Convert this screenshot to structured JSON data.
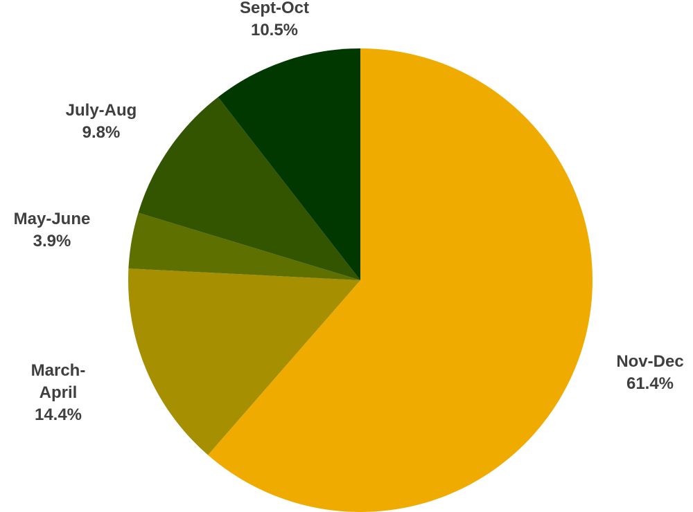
{
  "chart_data": {
    "type": "pie",
    "start_angle_deg": 0,
    "direction": "clockwise",
    "grid": false,
    "legend": "none",
    "slices": [
      {
        "category": "Nov-Dec",
        "value": 61.4,
        "label": "61.4%",
        "color": "#F0AB00"
      },
      {
        "category": "March-April",
        "value": 14.4,
        "label": "14.4%",
        "color": "#A68F00"
      },
      {
        "category": "May-June",
        "value": 3.9,
        "label": "3.9%",
        "color": "#5E7000"
      },
      {
        "category": "July-Aug",
        "value": 9.8,
        "label": "9.8%",
        "color": "#335500"
      },
      {
        "category": "Sept-Oct",
        "value": 10.5,
        "label": "10.5%",
        "color": "#003800"
      }
    ],
    "category_lines": {
      "March-April": [
        "March-",
        "April"
      ]
    }
  }
}
